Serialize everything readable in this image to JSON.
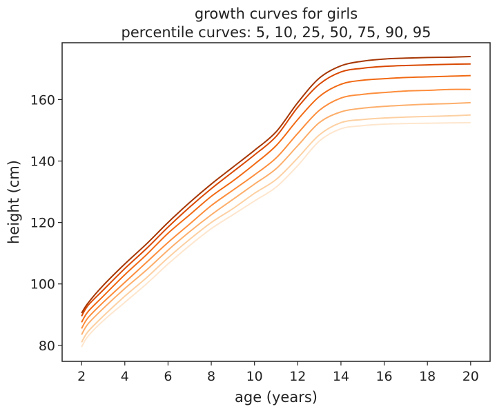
{
  "chart_data": {
    "type": "line",
    "title": "growth curves for girls",
    "subtitle": "percentile curves: 5, 10, 25, 50, 75, 90, 95",
    "xlabel": "age (years)",
    "ylabel": "height (cm)",
    "xlim": [
      1.1,
      20.9
    ],
    "ylim": [
      74.8,
      178.5
    ],
    "xticks": [
      2,
      4,
      6,
      8,
      10,
      12,
      14,
      16,
      18,
      20
    ],
    "xtick_labels": [
      "2",
      "4",
      "6",
      "8",
      "10",
      "12",
      "14",
      "16",
      "18",
      "20"
    ],
    "yticks": [
      80,
      100,
      120,
      140,
      160
    ],
    "ytick_labels": [
      "80",
      "100",
      "120",
      "140",
      "160"
    ],
    "grid": false,
    "x": [
      2,
      2.3,
      3,
      4,
      5,
      6,
      7,
      8,
      9,
      10,
      11,
      12,
      13,
      14,
      15,
      16,
      17,
      18,
      19,
      20
    ],
    "series": [
      {
        "name": "5",
        "color": "#fee6ce",
        "values": [
          79.5,
          83.0,
          88.0,
          94.0,
          100.0,
          106.5,
          112.5,
          118.0,
          122.5,
          127.0,
          131.5,
          138.5,
          146.5,
          150.5,
          151.5,
          152.0,
          152.2,
          152.3,
          152.4,
          152.5
        ]
      },
      {
        "name": "10",
        "color": "#fdd0a2",
        "values": [
          81.0,
          84.5,
          89.5,
          96.0,
          102.0,
          108.5,
          114.5,
          120.0,
          124.5,
          129.5,
          134.0,
          141.0,
          148.5,
          152.5,
          153.5,
          154.0,
          154.3,
          154.5,
          154.7,
          155.0
        ]
      },
      {
        "name": "25",
        "color": "#fdae6b",
        "values": [
          83.5,
          87.0,
          92.0,
          98.5,
          104.5,
          111.0,
          117.0,
          122.5,
          127.5,
          132.5,
          137.5,
          145.0,
          152.5,
          156.0,
          157.2,
          157.8,
          158.2,
          158.5,
          158.7,
          159.0
        ]
      },
      {
        "name": "50",
        "color": "#fd8d3c",
        "values": [
          85.5,
          89.0,
          94.0,
          100.5,
          107.0,
          113.5,
          119.5,
          125.5,
          130.5,
          135.5,
          141.0,
          149.0,
          156.5,
          160.5,
          161.7,
          162.3,
          162.8,
          163.0,
          163.3,
          163.3
        ]
      },
      {
        "name": "75",
        "color": "#f16913",
        "values": [
          87.5,
          91.0,
          96.0,
          103.0,
          109.5,
          116.5,
          122.5,
          128.5,
          133.5,
          139.0,
          145.0,
          153.5,
          161.0,
          165.0,
          166.3,
          166.8,
          167.2,
          167.4,
          167.6,
          167.8
        ]
      },
      {
        "name": "90",
        "color": "#d94801",
        "values": [
          89.5,
          93.0,
          98.0,
          105.0,
          111.5,
          118.5,
          125.0,
          131.0,
          136.5,
          142.0,
          148.0,
          157.5,
          165.0,
          169.0,
          170.2,
          170.8,
          171.1,
          171.3,
          171.5,
          171.6
        ]
      },
      {
        "name": "95",
        "color": "#a63603",
        "values": [
          90.5,
          93.8,
          99.5,
          106.5,
          113.0,
          120.0,
          126.5,
          132.5,
          138.0,
          143.5,
          149.5,
          159.0,
          167.0,
          171.0,
          172.5,
          173.2,
          173.5,
          173.7,
          173.8,
          174.0
        ]
      }
    ]
  }
}
